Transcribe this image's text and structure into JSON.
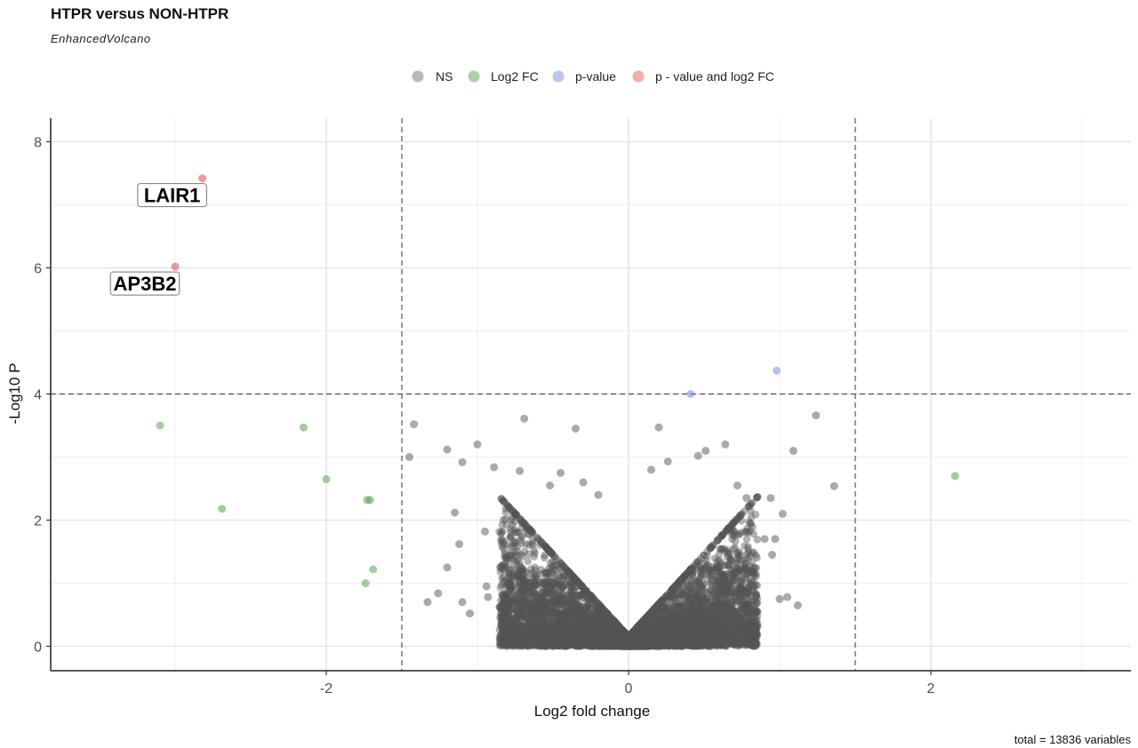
{
  "chart_data": {
    "type": "scatter",
    "title": "HTPR versus NON-HTPR",
    "subtitle": "EnhancedVolcano",
    "xlabel": "Log2 fold change",
    "ylabel": "-Log10 P",
    "xlim": [
      -3.85,
      3.3
    ],
    "ylim": [
      -0.4,
      8.4
    ],
    "x_ticks": [
      "-2",
      "0",
      "2"
    ],
    "x_tick_values": [
      -2,
      0,
      2
    ],
    "y_ticks": [
      "0",
      "2",
      "4",
      "6",
      "8"
    ],
    "y_tick_values": [
      0,
      2,
      4,
      6,
      8
    ],
    "grid": true,
    "thresholds": {
      "log2fc": 1.5,
      "neg_log10_p": 4
    },
    "legend": {
      "position": "top",
      "entries": [
        {
          "label": "NS",
          "color": "#808080"
        },
        {
          "label": "Log2 FC",
          "color": "#5aa350"
        },
        {
          "label": "p-value",
          "color": "#6a80d9"
        },
        {
          "label": "p - value and log2 FC",
          "color": "#e8555a"
        }
      ]
    },
    "caption": "total = 13836 variables",
    "series": [
      {
        "name": "p - value and log2 FC",
        "color": "#e8555a",
        "points": [
          {
            "x": -2.82,
            "y": 7.42,
            "label": "LAIR1"
          },
          {
            "x": -3.0,
            "y": 6.02,
            "label": "AP3B2"
          }
        ]
      },
      {
        "name": "p-value",
        "color": "#6a80d9",
        "points": [
          {
            "x": 0.41,
            "y": 4.0
          },
          {
            "x": 0.98,
            "y": 4.37
          }
        ]
      },
      {
        "name": "Log2 FC",
        "color": "#5aa350",
        "points": [
          {
            "x": -3.1,
            "y": 3.5
          },
          {
            "x": -2.15,
            "y": 3.47
          },
          {
            "x": -2.0,
            "y": 2.65
          },
          {
            "x": -2.69,
            "y": 2.18
          },
          {
            "x": -1.73,
            "y": 2.32
          },
          {
            "x": -1.71,
            "y": 2.32
          },
          {
            "x": -1.69,
            "y": 1.22
          },
          {
            "x": -1.74,
            "y": 1.0
          },
          {
            "x": 2.16,
            "y": 2.7
          }
        ]
      },
      {
        "name": "NS",
        "color": "#808080",
        "points": [
          {
            "x": -1.42,
            "y": 3.52
          },
          {
            "x": -1.45,
            "y": 3.0
          },
          {
            "x": -1.2,
            "y": 3.12
          },
          {
            "x": -1.1,
            "y": 2.92
          },
          {
            "x": -1.0,
            "y": 3.2
          },
          {
            "x": -0.89,
            "y": 2.84
          },
          {
            "x": -0.72,
            "y": 2.78
          },
          {
            "x": -0.69,
            "y": 3.61
          },
          {
            "x": -0.35,
            "y": 3.45
          },
          {
            "x": -0.3,
            "y": 2.6
          },
          {
            "x": 0.2,
            "y": 3.47
          },
          {
            "x": 0.26,
            "y": 2.93
          },
          {
            "x": 0.46,
            "y": 3.02
          },
          {
            "x": 0.51,
            "y": 3.1
          },
          {
            "x": 0.64,
            "y": 3.2
          },
          {
            "x": 1.09,
            "y": 3.1
          },
          {
            "x": 1.24,
            "y": 3.66
          },
          {
            "x": 1.36,
            "y": 2.54
          },
          {
            "x": -1.33,
            "y": 0.7
          },
          {
            "x": -1.26,
            "y": 0.84
          },
          {
            "x": -1.1,
            "y": 0.7
          },
          {
            "x": -1.05,
            "y": 0.52
          },
          {
            "x": -1.2,
            "y": 1.25
          },
          {
            "x": -0.94,
            "y": 0.95
          },
          {
            "x": -0.93,
            "y": 0.78
          },
          {
            "x": -1.15,
            "y": 2.12
          },
          {
            "x": -1.12,
            "y": 1.62
          },
          {
            "x": -0.95,
            "y": 1.82
          },
          {
            "x": 1.0,
            "y": 0.75
          },
          {
            "x": 1.05,
            "y": 0.78
          },
          {
            "x": 1.12,
            "y": 0.65
          },
          {
            "x": 0.95,
            "y": 1.45
          },
          {
            "x": 0.97,
            "y": 1.7
          },
          {
            "x": 0.9,
            "y": 1.7
          },
          {
            "x": 1.02,
            "y": 2.1
          },
          {
            "x": 0.94,
            "y": 2.35
          },
          {
            "x": 0.72,
            "y": 2.55
          },
          {
            "x": 0.78,
            "y": 2.35
          },
          {
            "x": -0.52,
            "y": 2.55
          },
          {
            "x": -0.45,
            "y": 2.75
          },
          {
            "x": -0.2,
            "y": 2.4
          },
          {
            "x": 0.15,
            "y": 2.8
          }
        ]
      }
    ],
    "cloud": {
      "count": 7000,
      "x_spread": [
        -0.95,
        0.95
      ],
      "y_scale": 2.6
    }
  }
}
